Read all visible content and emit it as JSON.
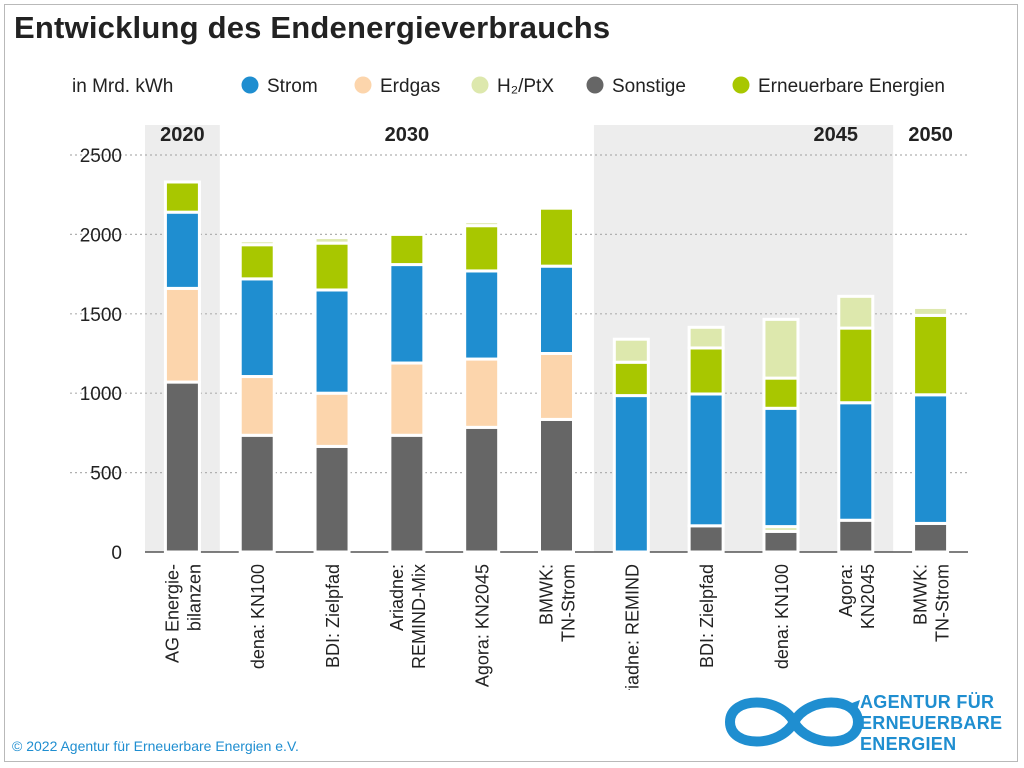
{
  "title": "Entwicklung des Endenergieverbrauchs",
  "copyright": "© 2022 Agentur für Erneuerbare Energien e.V.",
  "logo": {
    "lines": [
      "AGENTUR FÜR",
      "ERNEUERBARE",
      "ENERGIEN"
    ]
  },
  "chart_data": {
    "type": "bar",
    "stacked": true,
    "unit_label": "in Mrd. kWh",
    "ylim": [
      0,
      2500
    ],
    "yticks": [
      0,
      500,
      1000,
      1500,
      2000,
      2500
    ],
    "grid": true,
    "legend_position": "top",
    "groups": [
      {
        "label": "2020",
        "shaded": true,
        "categories": [
          0
        ]
      },
      {
        "label": "2030",
        "shaded": false,
        "categories": [
          1,
          2,
          3,
          4,
          5
        ]
      },
      {
        "label": "2045",
        "shaded": true,
        "categories": [
          6,
          7,
          8,
          9
        ]
      },
      {
        "label": "2050",
        "shaded": false,
        "categories": [
          10
        ]
      }
    ],
    "categories": [
      [
        "AG Energie-",
        "bilanzen"
      ],
      [
        "dena: KN100"
      ],
      [
        "BDI: Zielpfad"
      ],
      [
        "Ariadne:",
        "REMIND-Mix"
      ],
      [
        "Agora: KN2045"
      ],
      [
        "BMWK:",
        "TN-Strom"
      ],
      [
        "Ariadne: REMIND"
      ],
      [
        "BDI: Zielpfad"
      ],
      [
        "dena: KN100"
      ],
      [
        "Agora:",
        "KN2045"
      ],
      [
        "BMWK:",
        "TN-Strom"
      ]
    ],
    "series": [
      {
        "name": "Sonstige",
        "color": "#666666",
        "values": [
          1070,
          735,
          665,
          735,
          785,
          835,
          0,
          165,
          130,
          200,
          180
        ]
      },
      {
        "name": "H2/PtX",
        "color": "#dde8ad",
        "values": [
          0,
          0,
          0,
          0,
          0,
          0,
          0,
          0,
          30,
          0,
          0
        ]
      },
      {
        "name": "Erdgas",
        "color": "#fcd5ac",
        "values": [
          590,
          370,
          335,
          455,
          430,
          415,
          0,
          0,
          0,
          0,
          0
        ]
      },
      {
        "name": "Strom",
        "color": "#1f8ed0",
        "values": [
          480,
          615,
          650,
          620,
          555,
          550,
          985,
          830,
          745,
          740,
          810
        ]
      },
      {
        "name": "Erneuerbare Energien",
        "color": "#a8c700",
        "values": [
          190,
          215,
          295,
          190,
          285,
          365,
          210,
          290,
          190,
          470,
          500
        ]
      },
      {
        "name": "H2/PtX",
        "color": "#dde8ad",
        "values": [
          0,
          25,
          35,
          0,
          25,
          0,
          145,
          130,
          370,
          200,
          50
        ]
      }
    ],
    "legend": [
      {
        "label": "Strom",
        "color": "#1f8ed0"
      },
      {
        "label": "Erdgas",
        "color": "#fcd5ac"
      },
      {
        "label": "H₂/PtX",
        "color": "#dde8ad"
      },
      {
        "label": "Sonstige",
        "color": "#666666"
      },
      {
        "label": "Erneuerbare Energien",
        "color": "#a8c700"
      }
    ]
  }
}
